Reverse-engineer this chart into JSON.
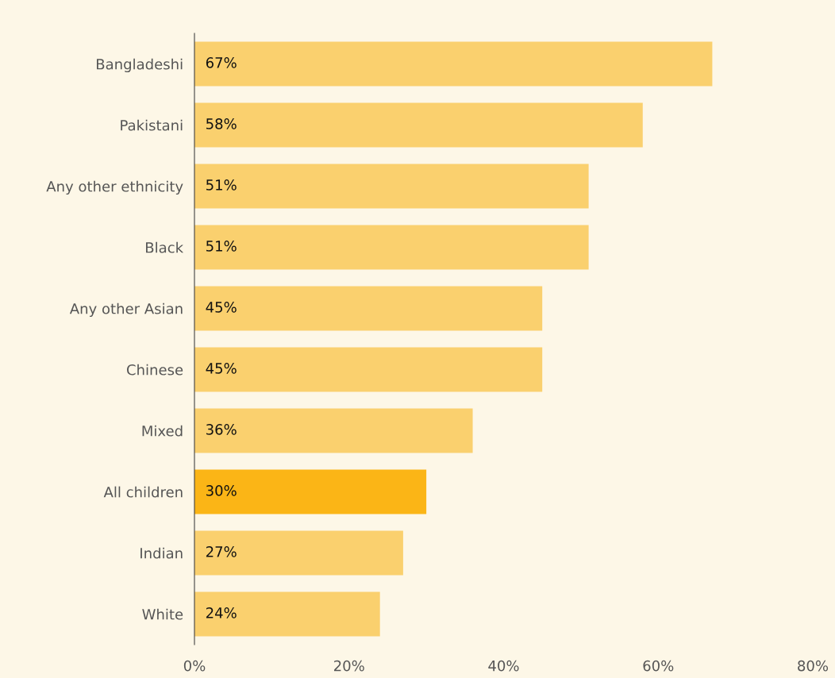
{
  "chart_data": {
    "type": "bar",
    "orientation": "horizontal",
    "categories": [
      "Bangladeshi",
      "Pakistani",
      "Any other ethnicity",
      "Black",
      "Any other Asian",
      "Chinese",
      "Mixed",
      "All children",
      "Indian",
      "White"
    ],
    "values": [
      67,
      58,
      51,
      51,
      45,
      45,
      36,
      30,
      27,
      24
    ],
    "value_labels": [
      "67%",
      "58%",
      "51%",
      "51%",
      "45%",
      "45%",
      "36%",
      "30%",
      "27%",
      "24%"
    ],
    "colors": [
      "#fad06e",
      "#fad06e",
      "#fad06e",
      "#fad06e",
      "#fad06e",
      "#fad06e",
      "#fad06e",
      "#fbb516",
      "#fad06e",
      "#fad06e"
    ],
    "xlim": [
      0,
      80
    ],
    "xticks": [
      {
        "value": 0,
        "label": "0%"
      },
      {
        "value": 20,
        "label": "20%"
      },
      {
        "value": 40,
        "label": "40%"
      },
      {
        "value": 60,
        "label": "60%"
      },
      {
        "value": 80,
        "label": "80%"
      }
    ],
    "grid": false,
    "legend": false
  }
}
